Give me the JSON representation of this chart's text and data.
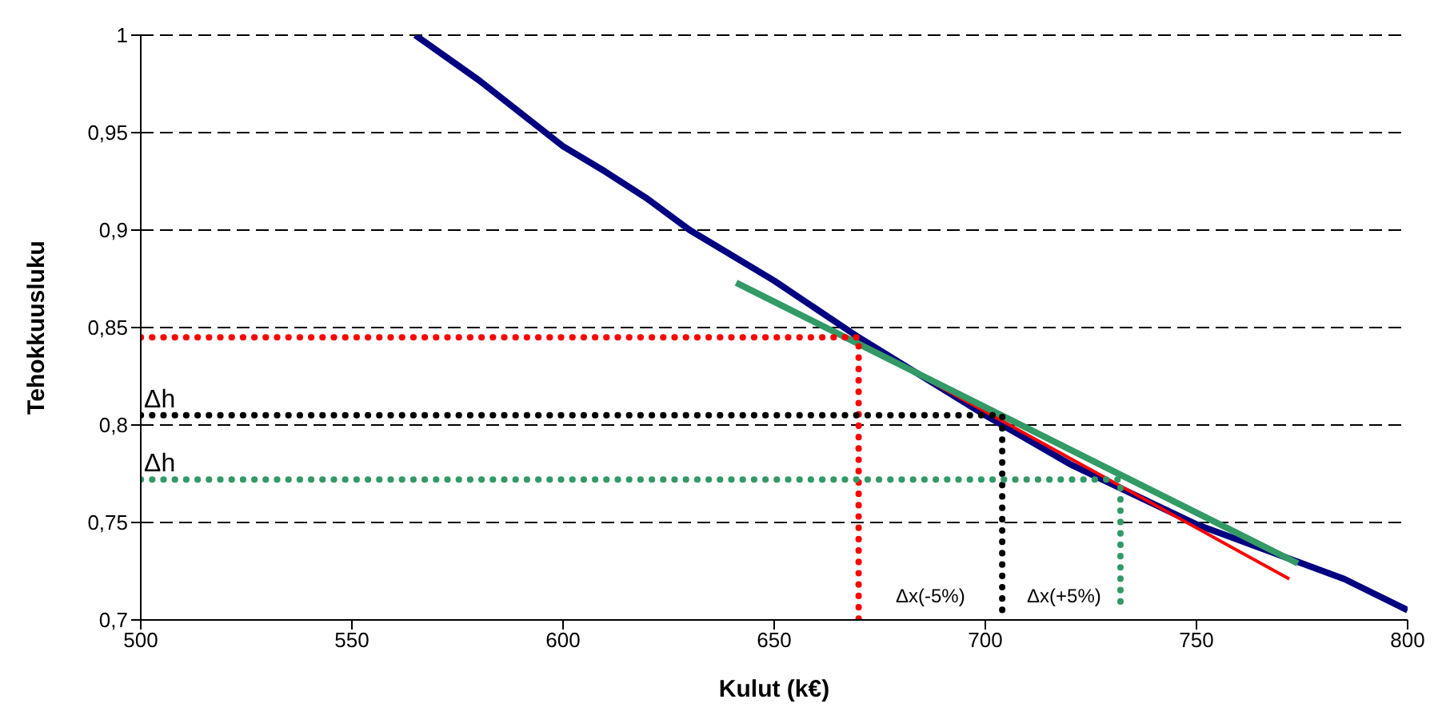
{
  "chart_data": {
    "type": "line",
    "xlabel": "Kulut (k€)",
    "ylabel": "Tehokkuusluku",
    "xlim": [
      500,
      800
    ],
    "xticks": [
      500,
      550,
      600,
      650,
      700,
      750,
      800
    ],
    "ylim": [
      0.7,
      1
    ],
    "yticks": [
      {
        "value": 0.7,
        "label": "0,7"
      },
      {
        "value": 0.75,
        "label": "0,75"
      },
      {
        "value": 0.8,
        "label": "0,8"
      },
      {
        "value": 0.85,
        "label": "0,85"
      },
      {
        "value": 0.9,
        "label": "0,9"
      },
      {
        "value": 0.95,
        "label": "0,95"
      },
      {
        "value": 1,
        "label": "1"
      }
    ],
    "grid": "y",
    "marker": "none",
    "line_style": "solid",
    "series": [
      {
        "color": "#000080",
        "x": [
          565,
          580,
          600,
          610,
          620,
          630,
          650,
          670,
          700,
          720,
          750,
          785,
          800
        ],
        "values": [
          1,
          0.977,
          0.943,
          0.93,
          0.916,
          0.9,
          0.874,
          0.845,
          0.805,
          0.78,
          0.749,
          0.721,
          0.705
        ]
      },
      {
        "color": "#ff0000",
        "x": [
          668,
          772
        ],
        "values": [
          0.845,
          0.721
        ]
      },
      {
        "color": "#339966",
        "x": [
          641,
          774
        ],
        "values": [
          0.873,
          0.729
        ]
      },
      {
        "color": "#ff0000",
        "line_style": "dotted",
        "x": [
          500,
          670,
          670
        ],
        "values": [
          0.845,
          0.845,
          0.7
        ]
      },
      {
        "color": "#000000",
        "line_style": "dotted",
        "x": [
          500,
          704,
          704
        ],
        "values": [
          0.805,
          0.805,
          0.7
        ]
      },
      {
        "color": "#339966",
        "line_style": "dotted",
        "x": [
          500,
          732,
          732
        ],
        "values": [
          0.772,
          0.772,
          0.708
        ]
      }
    ],
    "annotations": [
      "Δh",
      "Δh",
      "Δx(-5%)",
      "Δx(+5%)"
    ]
  }
}
